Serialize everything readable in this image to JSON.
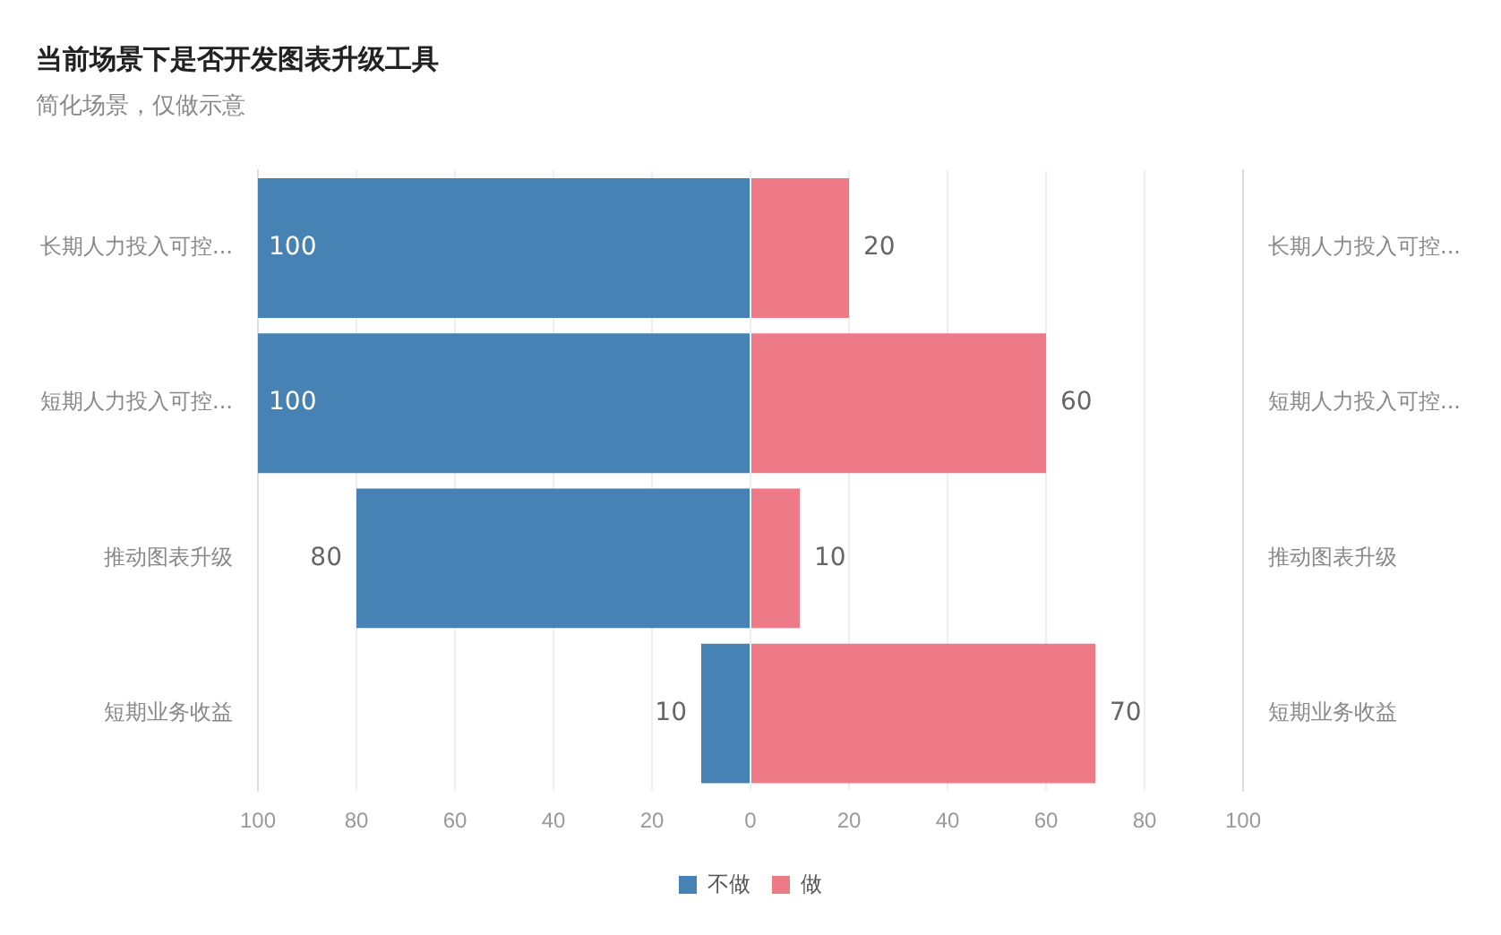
{
  "chart_data": {
    "type": "bar",
    "orientation": "horizontal",
    "title": "当前场景下是否开发图表升级工具",
    "subtitle": "简化场景，仅做示意",
    "categories": [
      "长期人力投入可控...",
      "短期人力投入可控...",
      "推动图表升级",
      "短期业务收益"
    ],
    "series": [
      {
        "name": "不做",
        "color": "#4682b4",
        "values": [
          100,
          100,
          80,
          10
        ],
        "base": [
          -100,
          -100,
          -80,
          -10
        ],
        "value_labels": [
          "100",
          "100",
          "80",
          "10"
        ]
      },
      {
        "name": "做",
        "color": "#ee7a88",
        "values": [
          20,
          60,
          10,
          70
        ],
        "value_labels": [
          "20",
          "60",
          "10",
          "70"
        ]
      }
    ],
    "xlim": [
      -100,
      100
    ],
    "xticks": [
      {
        "value": -100,
        "label": "100"
      },
      {
        "value": -80,
        "label": "80"
      },
      {
        "value": -60,
        "label": "60"
      },
      {
        "value": -40,
        "label": "40"
      },
      {
        "value": -20,
        "label": "20"
      },
      0,
      20,
      40,
      60,
      80,
      100
    ],
    "grid": "x",
    "legend": "bottom"
  }
}
